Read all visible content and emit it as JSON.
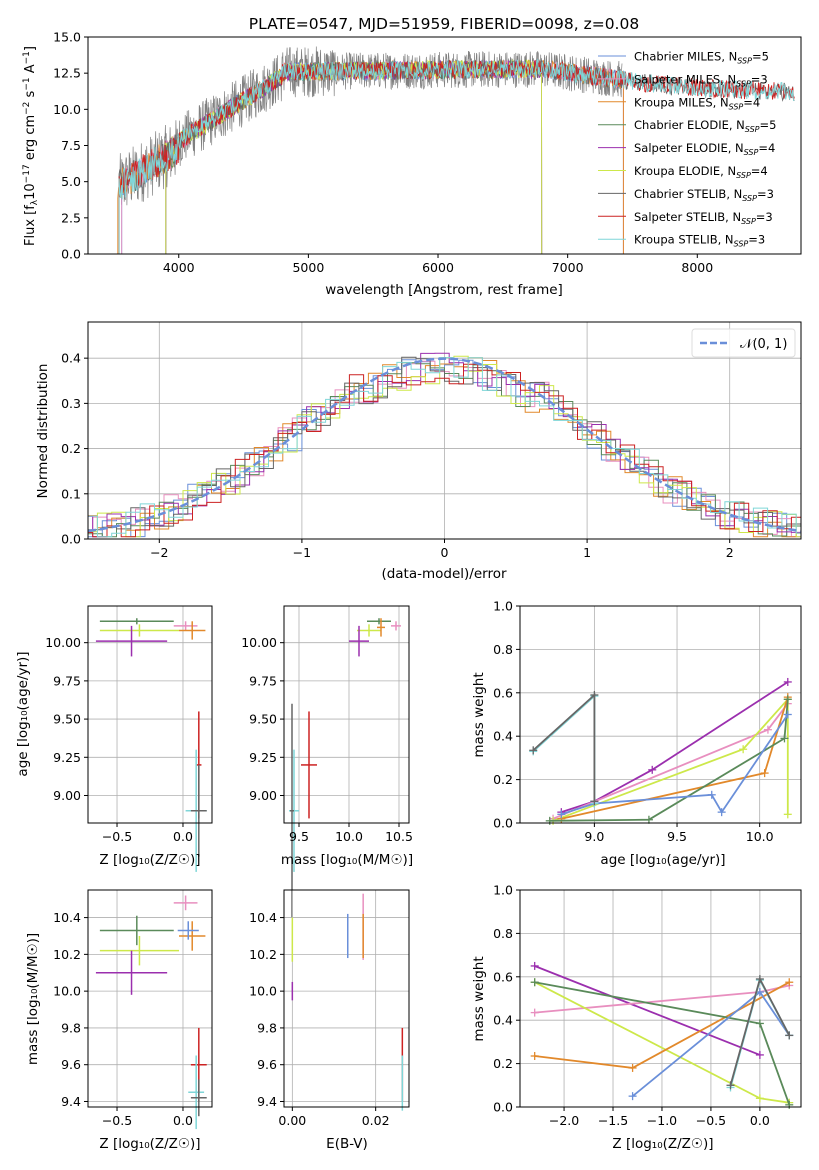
{
  "colors": {
    "Chabrier MILES": "#6a8fd9",
    "Salpeter MILES": "#e8872a",
    "Kroupa MILES": "#e2892b",
    "Chabrier ELODIE": "#5a8a5a",
    "Salpeter ELODIE": "#9b2fae",
    "Kroupa ELODIE": "#cde84a",
    "Chabrier STELIB": "#666666",
    "Salpeter STELIB": "#cc2222",
    "Kroupa STELIB": "#7fd6d8",
    "pink": "#e88fbf",
    "normal": "#6a8fd9"
  },
  "chart_data": [
    {
      "type": "line",
      "title": "PLATE=0547, MJD=51959, FIBERID=0098, z=0.08",
      "xlabel": "wavelength [Angstrom, rest frame]",
      "ylabel_main": "Flux [f",
      "ylabel_sub": "λ",
      "ylabel_rest": "10",
      "ylabel_exp": "−17",
      "ylabel_tail": " erg cm",
      "ylabel_e2": "−2",
      "ylabel_s": " s",
      "ylabel_e1": "−1",
      "ylabel_A": " A",
      "ylabel_e3": "−1",
      "ylabel_end": "]",
      "xlim": [
        3300,
        8800
      ],
      "ylim": [
        0,
        15
      ],
      "xticks": [
        "4000",
        "5000",
        "6000",
        "7000",
        "8000"
      ],
      "yticks": [
        "0.0",
        "2.5",
        "5.0",
        "7.5",
        "10.0",
        "12.5",
        "15.0"
      ],
      "legend": [
        {
          "name": "Chabrier MILES",
          "n": "5",
          "color": "#6a8fd9"
        },
        {
          "name": "Salpeter MILES",
          "n": "3",
          "color": "#e88fbf"
        },
        {
          "name": "Kroupa MILES",
          "n": "4",
          "color": "#e2892b"
        },
        {
          "name": "Chabrier ELODIE",
          "n": "5",
          "color": "#5a8a5a"
        },
        {
          "name": "Salpeter ELODIE",
          "n": "4",
          "color": "#9b2fae"
        },
        {
          "name": "Kroupa ELODIE",
          "n": "4",
          "color": "#cde84a"
        },
        {
          "name": "Chabrier STELIB",
          "n": "3",
          "color": "#666666"
        },
        {
          "name": "Salpeter STELIB",
          "n": "3",
          "color": "#cc2222"
        },
        {
          "name": "Kroupa STELIB",
          "n": "3",
          "color": "#7fd6d8"
        }
      ],
      "legend_placement": "right",
      "grid": false
    },
    {
      "type": "line",
      "xlabel": "(data-model)/error",
      "ylabel": "Normed distribution",
      "xlim": [
        -2.5,
        2.5
      ],
      "ylim": [
        0,
        0.48
      ],
      "xticks": [
        "−2",
        "−1",
        "0",
        "1",
        "2"
      ],
      "yticks": [
        "0.0",
        "0.1",
        "0.2",
        "0.3",
        "0.4"
      ],
      "legend": "𝒩(0, 1)",
      "legend_placement": "top-right",
      "grid": true
    },
    {
      "type": "scatter",
      "xlabel": "Z [log₁₀(Z/Z☉)]",
      "ylabel": "age  [log₁₀(age/yr)]",
      "xticks": [
        "−0.5",
        "0.0"
      ],
      "yticks": [
        "9.00",
        "9.25",
        "9.50",
        "9.75",
        "10.00"
      ],
      "grid": true
    },
    {
      "type": "scatter",
      "xlabel": "mass [log₁₀(M/M☉)]",
      "xticks": [
        "9.5",
        "10.0",
        "10.5"
      ],
      "yticks": [
        "9.00",
        "9.25",
        "9.50",
        "9.75",
        "10.00"
      ],
      "grid": true
    },
    {
      "type": "line",
      "xlabel": "age  [log₁₀(age/yr)]",
      "ylabel": "mass weight",
      "xticks": [
        "9.0",
        "9.5",
        "10.0"
      ],
      "yticks": [
        "0.0",
        "0.2",
        "0.4",
        "0.6",
        "0.8",
        "1.0"
      ],
      "xlim": [
        8.55,
        10.25
      ],
      "ylim": [
        0,
        1
      ],
      "grid": true,
      "series": [
        {
          "color": "#9b2fae",
          "x": [
            8.8,
            9.0,
            9.35,
            10.17
          ],
          "y": [
            0.05,
            0.1,
            0.245,
            0.65
          ]
        },
        {
          "color": "#e88fbf",
          "x": [
            8.75,
            10.05,
            10.17
          ],
          "y": [
            0.02,
            0.43,
            0.55
          ]
        },
        {
          "color": "#cde84a",
          "x": [
            8.75,
            9.9,
            10.17,
            10.17
          ],
          "y": [
            0.01,
            0.34,
            0.57,
            0.04
          ]
        },
        {
          "color": "#e2892b",
          "x": [
            8.8,
            10.03,
            10.17
          ],
          "y": [
            0.02,
            0.23,
            0.58
          ]
        },
        {
          "color": "#5a8a5a",
          "x": [
            8.73,
            9.33,
            10.15,
            10.17
          ],
          "y": [
            0.01,
            0.015,
            0.39,
            0.57
          ]
        },
        {
          "color": "#6a8fd9",
          "x": [
            8.8,
            9.0,
            9.71,
            9.77,
            10.17
          ],
          "y": [
            0.04,
            0.09,
            0.13,
            0.05,
            0.5
          ]
        },
        {
          "color": "#7fd6d8",
          "x": [
            8.63,
            9.0,
            9.0
          ],
          "y": [
            0.33,
            0.585,
            0.09
          ]
        },
        {
          "color": "#666666",
          "x": [
            8.63,
            9.0,
            9.0
          ],
          "y": [
            0.335,
            0.59,
            0.1
          ]
        }
      ]
    },
    {
      "type": "scatter",
      "xlabel": "Z [log₁₀(Z/Z☉)]",
      "ylabel": "mass [log₁₀(M/M☉)]",
      "xticks": [
        "−0.5",
        "0.0"
      ],
      "yticks": [
        "9.4",
        "9.6",
        "9.8",
        "10.0",
        "10.2",
        "10.4"
      ],
      "grid": true
    },
    {
      "type": "scatter",
      "xlabel": "E(B-V)",
      "xticks": [
        "0.00",
        "0.02"
      ],
      "yticks": [
        "9.4",
        "9.6",
        "9.8",
        "10.0",
        "10.2",
        "10.4"
      ],
      "grid": true
    },
    {
      "type": "line",
      "xlabel": "Z [log₁₀(Z/Z☉)]",
      "ylabel": "mass weight",
      "xticks": [
        "−2.0",
        "−1.5",
        "−1.0",
        "−0.5",
        "0.0"
      ],
      "yticks": [
        "0.0",
        "0.2",
        "0.4",
        "0.6",
        "0.8",
        "1.0"
      ],
      "xlim": [
        -2.45,
        0.42
      ],
      "ylim": [
        0,
        1
      ],
      "grid": true,
      "series": [
        {
          "color": "#9b2fae",
          "x": [
            -2.3,
            0.0
          ],
          "y": [
            0.65,
            0.24
          ]
        },
        {
          "color": "#e88fbf",
          "x": [
            -2.3,
            0.0,
            0.3
          ],
          "y": [
            0.435,
            0.53,
            0.56
          ]
        },
        {
          "color": "#cde84a",
          "x": [
            -2.3,
            0.0,
            0.3
          ],
          "y": [
            0.575,
            0.04,
            0.02
          ]
        },
        {
          "color": "#e2892b",
          "x": [
            -2.3,
            -1.3,
            0.3
          ],
          "y": [
            0.235,
            0.18,
            0.575
          ]
        },
        {
          "color": "#5a8a5a",
          "x": [
            -2.3,
            0.0,
            0.3
          ],
          "y": [
            0.575,
            0.385,
            0.01
          ]
        },
        {
          "color": "#6a8fd9",
          "x": [
            -1.3,
            0.0,
            0.3
          ],
          "y": [
            0.05,
            0.53,
            0.33
          ]
        },
        {
          "color": "#7fd6d8",
          "x": [
            -0.3,
            0.0,
            0.3
          ],
          "y": [
            0.09,
            0.585,
            0.33
          ]
        },
        {
          "color": "#666666",
          "x": [
            -0.3,
            0.0,
            0.3
          ],
          "y": [
            0.1,
            0.59,
            0.33
          ]
        }
      ]
    }
  ]
}
